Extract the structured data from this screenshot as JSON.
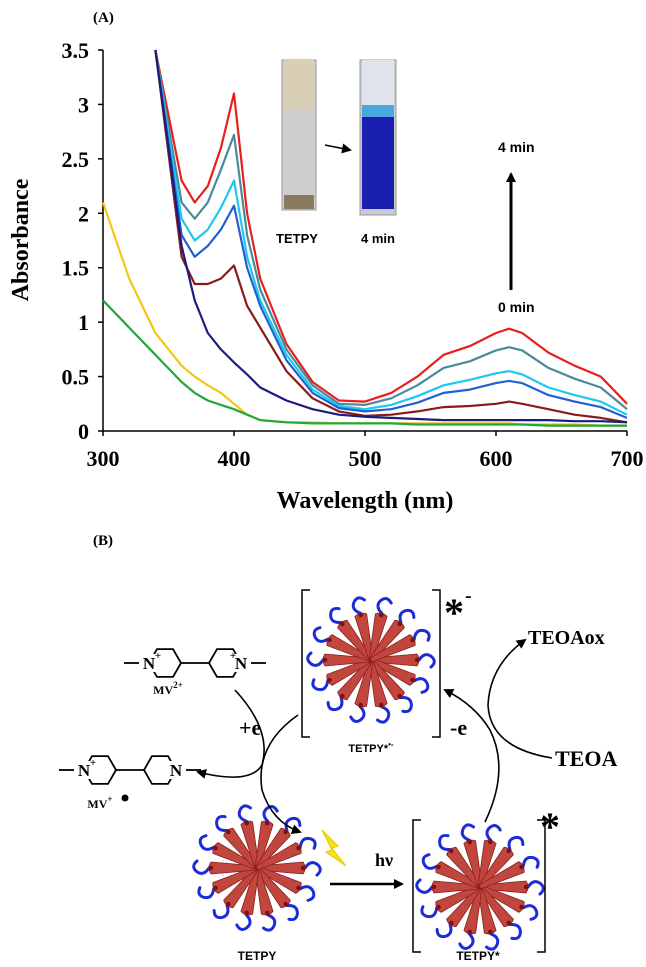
{
  "chart_data": {
    "type": "line",
    "panel_label": "(A)",
    "x_label": "Wavelength (nm)",
    "y_label": "Absorbance",
    "x": [
      300,
      320,
      340,
      360,
      370,
      380,
      390,
      400,
      410,
      420,
      440,
      460,
      480,
      500,
      520,
      540,
      560,
      580,
      600,
      610,
      620,
      640,
      660,
      680,
      700
    ],
    "series": [
      {
        "color": "#e8201c",
        "values": [
          null,
          null,
          3.5,
          2.3,
          2.1,
          2.25,
          2.6,
          3.1,
          2.0,
          1.4,
          0.8,
          0.45,
          0.28,
          0.27,
          0.35,
          0.5,
          0.7,
          0.78,
          0.9,
          0.94,
          0.9,
          0.72,
          0.6,
          0.5,
          0.25
        ]
      },
      {
        "color": "#4a8a9c",
        "values": [
          null,
          null,
          3.5,
          2.1,
          1.95,
          2.1,
          2.4,
          2.72,
          1.8,
          1.3,
          0.75,
          0.42,
          0.25,
          0.24,
          0.3,
          0.42,
          0.58,
          0.64,
          0.74,
          0.77,
          0.74,
          0.58,
          0.48,
          0.4,
          0.2
        ]
      },
      {
        "color": "#1ec8ee",
        "values": [
          null,
          null,
          3.5,
          1.95,
          1.75,
          1.85,
          2.05,
          2.3,
          1.6,
          1.2,
          0.7,
          0.38,
          0.23,
          0.2,
          0.24,
          0.32,
          0.42,
          0.47,
          0.53,
          0.55,
          0.52,
          0.4,
          0.33,
          0.27,
          0.15
        ]
      },
      {
        "color": "#2060d0",
        "values": [
          null,
          null,
          3.5,
          1.8,
          1.6,
          1.7,
          1.85,
          2.07,
          1.5,
          1.15,
          0.65,
          0.35,
          0.21,
          0.18,
          0.2,
          0.26,
          0.35,
          0.38,
          0.44,
          0.46,
          0.44,
          0.33,
          0.27,
          0.22,
          0.12
        ]
      },
      {
        "color": "#8b1a1a",
        "values": [
          null,
          null,
          3.5,
          1.6,
          1.35,
          1.35,
          1.4,
          1.52,
          1.15,
          0.95,
          0.55,
          0.3,
          0.18,
          0.14,
          0.15,
          0.18,
          0.22,
          0.23,
          0.25,
          0.27,
          0.25,
          0.2,
          0.15,
          0.12,
          0.08
        ]
      },
      {
        "color": "#1c1c80",
        "values": [
          null,
          null,
          3.5,
          1.7,
          1.2,
          0.9,
          0.75,
          0.63,
          0.52,
          0.4,
          0.28,
          0.2,
          0.15,
          0.13,
          0.12,
          0.11,
          0.1,
          0.1,
          0.1,
          0.1,
          0.1,
          0.1,
          0.09,
          0.09,
          0.08
        ]
      },
      {
        "color": "#f5c518",
        "values": [
          2.1,
          1.4,
          0.9,
          0.6,
          0.5,
          0.42,
          0.35,
          0.25,
          0.15,
          0.1,
          0.08,
          0.08,
          0.07,
          0.07,
          0.07,
          0.07,
          0.07,
          0.07,
          0.07,
          0.07,
          0.06,
          0.06,
          0.06,
          0.05,
          0.05
        ]
      },
      {
        "color": "#22a83a",
        "values": [
          1.2,
          0.95,
          0.7,
          0.45,
          0.35,
          0.28,
          0.24,
          0.2,
          0.15,
          0.1,
          0.08,
          0.07,
          0.07,
          0.07,
          0.07,
          0.06,
          0.06,
          0.06,
          0.06,
          0.06,
          0.06,
          0.05,
          0.05,
          0.05,
          0.05
        ]
      }
    ],
    "xlim": [
      300,
      700
    ],
    "xticks": [
      300,
      400,
      500,
      600,
      700
    ],
    "ylim": [
      0,
      3.5
    ],
    "yticks": [
      0,
      0.5,
      1,
      1.5,
      2,
      2.5,
      3,
      3.5
    ],
    "annotations": [
      "4 min",
      "0 min"
    ],
    "inset_labels": [
      "TETPY",
      "4 min"
    ]
  },
  "diagram": {
    "panel_label": "(B)",
    "mv2_atoms": [
      "N",
      "+",
      "N",
      "+"
    ],
    "mv2_label": {
      "text": "MV",
      "sup": "2+"
    },
    "mv_atoms": [
      "N",
      "+",
      "N"
    ],
    "mv_label": {
      "text": "MV",
      "sup": "+"
    },
    "plus_e": "+e",
    "minus_e": "-e",
    "teoa": "TEOA",
    "teoa_ox": "TEOAox",
    "hv": "hν",
    "top_star": "*",
    "top_charge": "-",
    "bottom_star": "*",
    "micelle_labels": {
      "top": {
        "text": "TETPY*",
        "sup": "•-"
      },
      "left": "TETPY",
      "right": "TETPY*"
    }
  }
}
